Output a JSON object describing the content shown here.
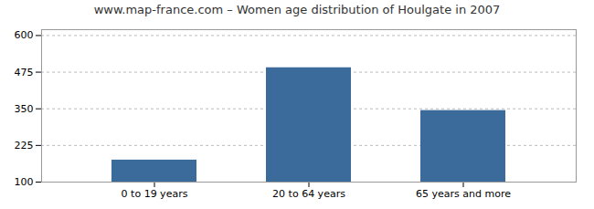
{
  "chart_data": {
    "type": "bar",
    "title": "www.map-france.com – Women age distribution of Houlgate in 2007",
    "categories": [
      "0 to 19 years",
      "20 to 64 years",
      "65 years and more"
    ],
    "values": [
      175,
      490,
      344
    ],
    "color": "#3a6b9a",
    "ylim": [
      100,
      620
    ],
    "yticks": [
      100,
      225,
      350,
      475,
      600
    ],
    "grid": true
  }
}
